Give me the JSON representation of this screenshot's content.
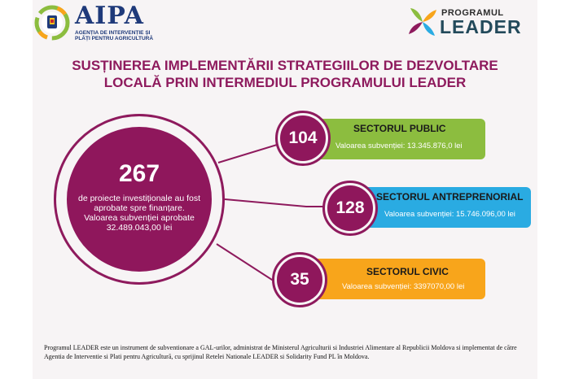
{
  "header": {
    "aipa_name": "AIPA",
    "aipa_subtitle": "AGENȚIA DE INTERVENȚIE ȘI PLĂȚI PENTRU AGRICULTURĂ",
    "leader_small": "PROGRAMUL",
    "leader_big": "LEADER"
  },
  "title": {
    "line1": "SUSȚINEREA IMPLEMENTĂRII STRATEGIILOR DE DEZVOLTARE",
    "line2": "LOCALĂ PRIN  INTERMEDIUL PROGRAMULUI LEADER"
  },
  "summary": {
    "number": "267",
    "text": "de proiecte investiționale au fost aprobate spre finanțare. Valoarea subvenției aprobate 32.489.043,00 lei"
  },
  "sectors": [
    {
      "count": "104",
      "title": "SECTORUL PUBLIC",
      "value": "Valoarea subvenției: 13.345.876,0 lei",
      "color": "#8cbd3f"
    },
    {
      "count": "128",
      "title": "SECTORUL ANTREPRENORIAL",
      "value": "Valoarea subvenției: 15.746.096,00 lei",
      "color": "#2aabe2"
    },
    {
      "count": "35",
      "title": "SECTORUL CIVIC",
      "value": "Valoarea subvenției: 3397070,00 lei",
      "color": "#f8a51b"
    }
  ],
  "footer": {
    "text": "Programul LEADER este un instrument de subventionare a GAL-urilor, administrat de Ministerul Agriculturii si Industriei Alimentare al Republicii Moldova si implementat de către Agentia de Interventie si Plati pentru Agricultură, cu sprijinul Retelei Nationale LEADER si Solidarity Fund PL în Moldova."
  },
  "colors": {
    "accent": "#8e1a5d",
    "navy": "#1f3a7a",
    "public": "#8cbd3f",
    "entrepreneurial": "#2aabe2",
    "civic": "#f8a51b"
  }
}
